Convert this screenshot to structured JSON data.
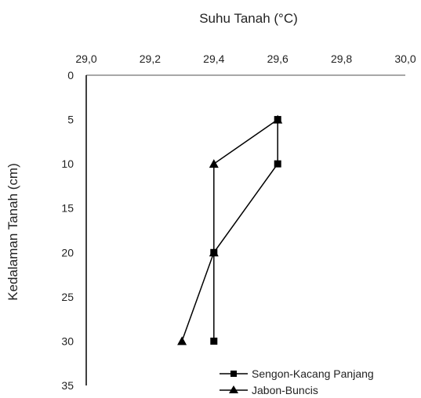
{
  "chart_data": {
    "type": "line",
    "title": "",
    "xlabel": "Suhu Tanah (°C)",
    "ylabel": "Kedalaman Tanah (cm)",
    "x_axis_position": "top",
    "y_axis_inverted": true,
    "xlim": [
      29.0,
      30.0
    ],
    "ylim": [
      0,
      35
    ],
    "x_ticks": [
      "29,0",
      "29,2",
      "29,4",
      "29,6",
      "29,8",
      "30,0"
    ],
    "x_tick_values": [
      29.0,
      29.2,
      29.4,
      29.6,
      29.8,
      30.0
    ],
    "y_ticks": [
      "0",
      "5",
      "10",
      "15",
      "20",
      "25",
      "30",
      "35"
    ],
    "y_tick_values": [
      0,
      5,
      10,
      15,
      20,
      25,
      30,
      35
    ],
    "grid": false,
    "legend_position": "bottom-right",
    "series": [
      {
        "name": "Sengon-Kacang Panjang",
        "marker": "square",
        "color": "#000000",
        "points": [
          {
            "x": 29.6,
            "y": 5
          },
          {
            "x": 29.6,
            "y": 10
          },
          {
            "x": 29.4,
            "y": 20
          },
          {
            "x": 29.4,
            "y": 30
          }
        ]
      },
      {
        "name": "Jabon-Buncis",
        "marker": "triangle",
        "color": "#000000",
        "points": [
          {
            "x": 29.6,
            "y": 5
          },
          {
            "x": 29.4,
            "y": 10
          },
          {
            "x": 29.4,
            "y": 20
          },
          {
            "x": 29.3,
            "y": 30
          }
        ]
      }
    ]
  }
}
